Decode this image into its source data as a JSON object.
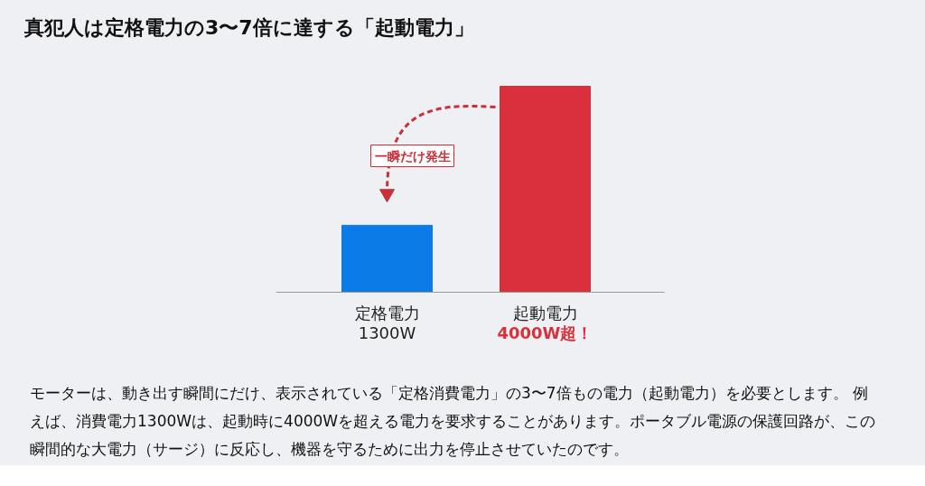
{
  "chart_data": {
    "type": "bar",
    "title": "真犯人は定格電力の3〜7倍に達する「起動電力」",
    "categories": [
      "定格電力",
      "起動電力"
    ],
    "values": [
      1300,
      4000
    ],
    "colors": [
      "#0b7be8",
      "#d9303b"
    ],
    "value_labels": [
      "1300W",
      "4000W超！"
    ],
    "annotations": [
      "一瞬だけ発生",
      "モーターは、動き出す瞬間にだけ、表示されている「定格消費電力」の3〜7倍もの電力（起動電力）を必要とします。 例えば、消費電力1300Wは、起動時に4000Wを超える電力を要求することがあります。ポータブル電源の保護回路が、この瞬間的な大電力（サージ）に反応し、機器を守るために出力を停止させていたのです。"
    ]
  }
}
